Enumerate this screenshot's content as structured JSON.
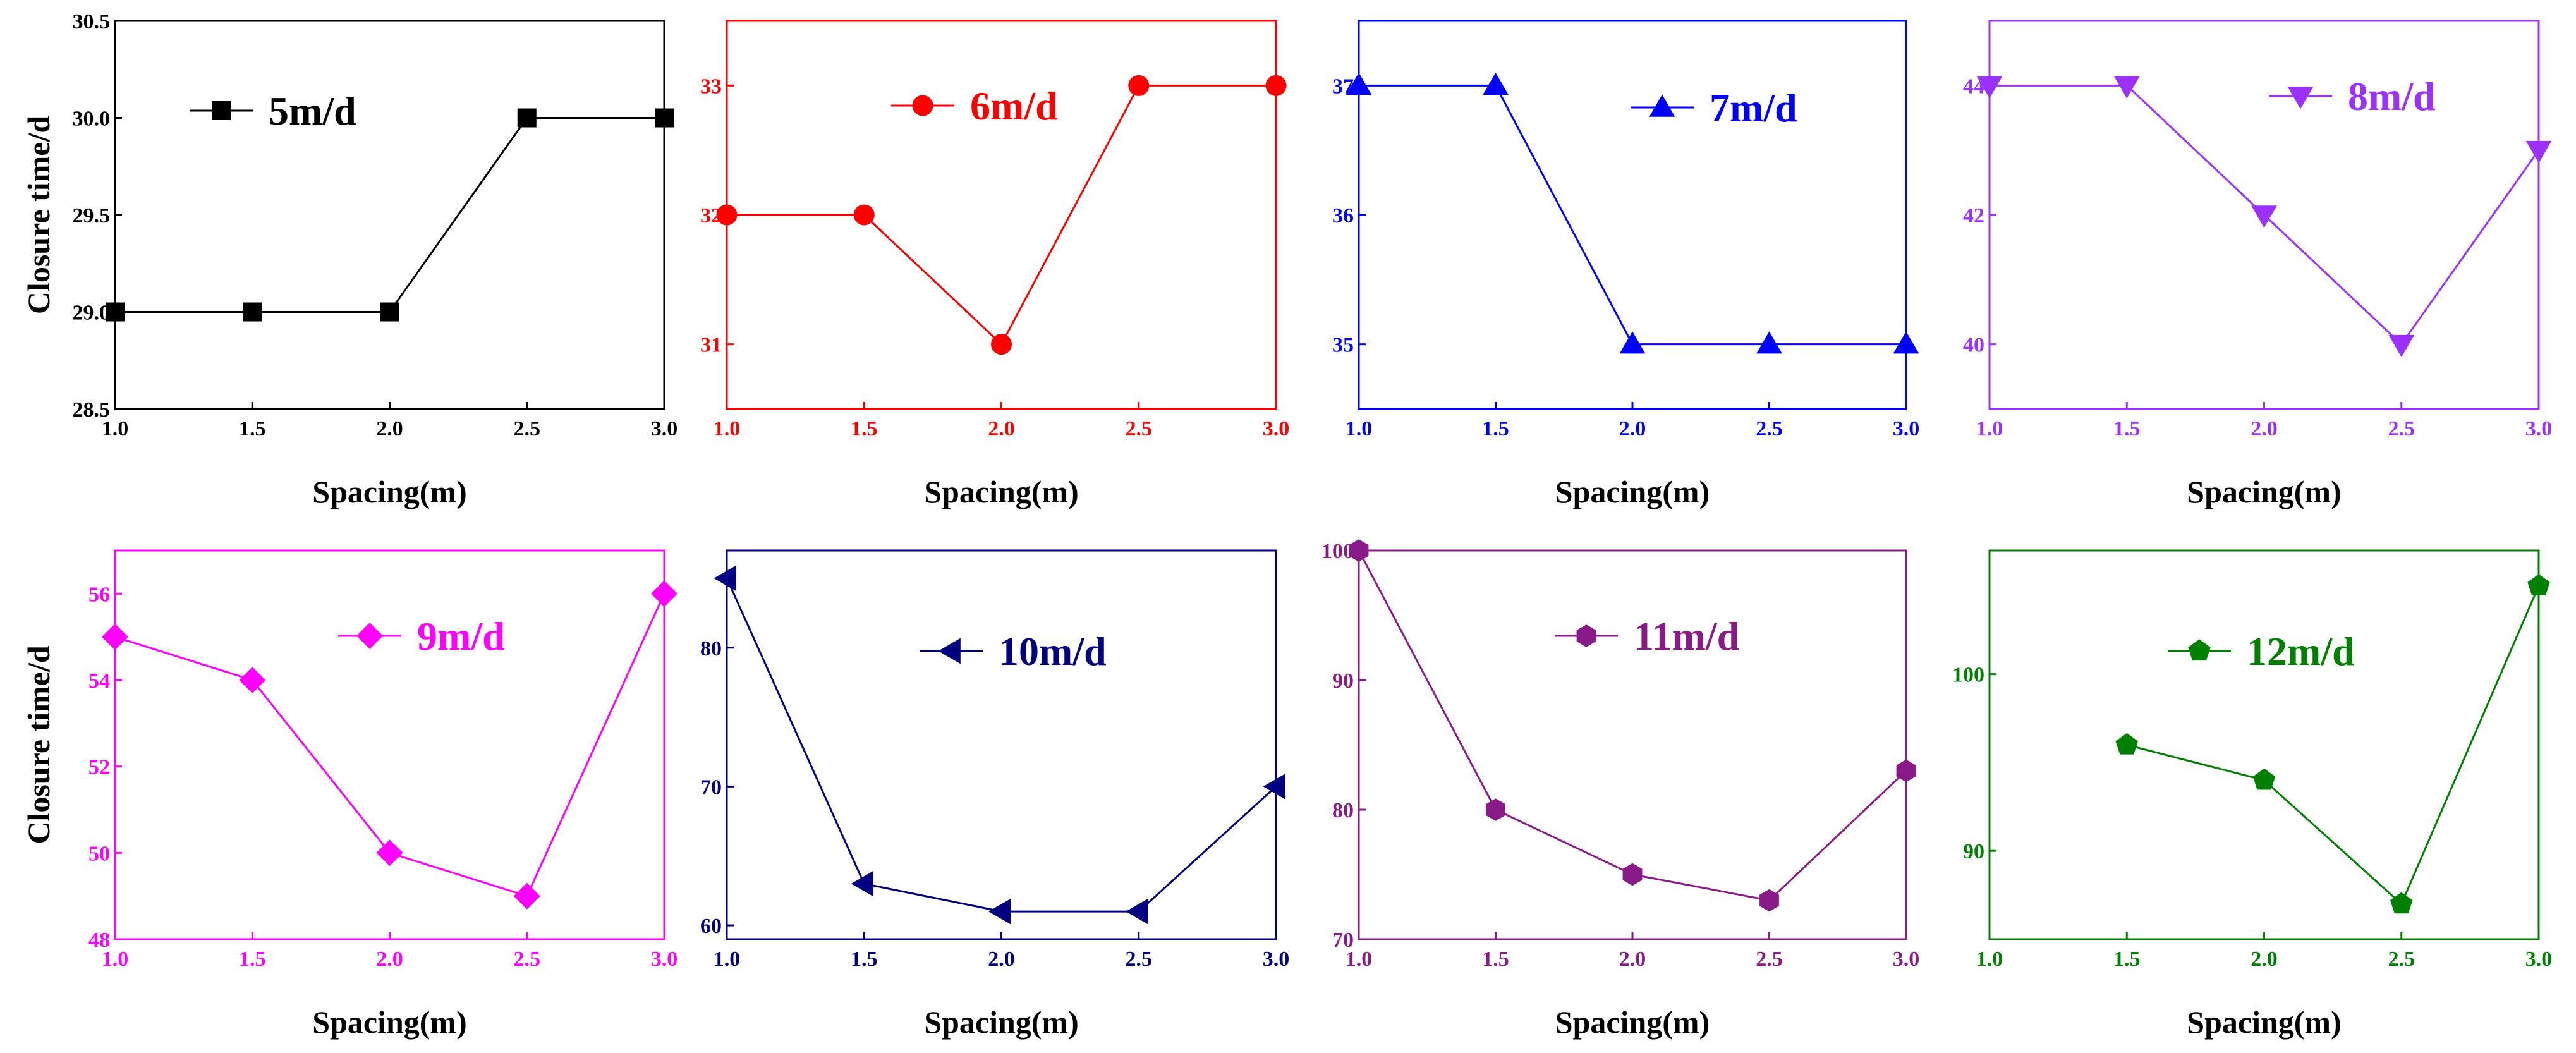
{
  "chart_data": [
    {
      "type": "line",
      "color": "#000000",
      "marker": "square",
      "xlabel": "Spacing(m)",
      "ylabel": "Closure time/d",
      "xlim": [
        1.0,
        3.0
      ],
      "ylim": [
        28.5,
        30.5
      ],
      "xticks": [
        1.0,
        1.5,
        2.0,
        2.5,
        3.0
      ],
      "xtick_labels": [
        "1.0",
        "1.5",
        "2.0",
        "2.5",
        "3.0"
      ],
      "yticks": [
        28.5,
        29.0,
        29.5,
        30.0,
        30.5
      ],
      "ytick_labels": [
        "28.5",
        "29.0",
        "29.5",
        "30.0",
        "30.5"
      ],
      "step": true,
      "legend_position": "top-center",
      "series": [
        {
          "name": "5m/d",
          "x": [
            1.0,
            1.5,
            2.0,
            2.5,
            3.0
          ],
          "y": [
            29,
            29,
            29,
            30,
            30
          ]
        }
      ]
    },
    {
      "type": "line",
      "color": "#ff0000",
      "marker": "circle",
      "xlabel": "Spacing(m)",
      "ylabel": "",
      "xlim": [
        1.0,
        3.0
      ],
      "ylim": [
        30.5,
        33.5
      ],
      "xticks": [
        1.0,
        1.5,
        2.0,
        2.5,
        3.0
      ],
      "xtick_labels": [
        "1.0",
        "1.5",
        "2.0",
        "2.5",
        "3.0"
      ],
      "yticks": [
        31,
        32,
        33
      ],
      "ytick_labels": [
        "31",
        "32",
        "33"
      ],
      "step": false,
      "legend_position": "top-center",
      "series": [
        {
          "name": "6m/d",
          "x": [
            1.0,
            1.5,
            2.0,
            2.5,
            3.0
          ],
          "y": [
            32,
            32,
            31,
            33,
            33
          ]
        }
      ]
    },
    {
      "type": "line",
      "color": "#0000ff",
      "marker": "triangle-up",
      "xlabel": "Spacing(m)",
      "ylabel": "",
      "xlim": [
        1.0,
        3.0
      ],
      "ylim": [
        34.5,
        37.5
      ],
      "xticks": [
        1.0,
        1.5,
        2.0,
        2.5,
        3.0
      ],
      "xtick_labels": [
        "1.0",
        "1.5",
        "2.0",
        "2.5",
        "3.0"
      ],
      "yticks": [
        35,
        36,
        37
      ],
      "ytick_labels": [
        "35",
        "36",
        "37"
      ],
      "step": false,
      "legend_position": "top-right",
      "series": [
        {
          "name": "7m/d",
          "x": [
            1.0,
            1.5,
            2.0,
            2.5,
            3.0
          ],
          "y": [
            37,
            37,
            35,
            35,
            35
          ]
        }
      ]
    },
    {
      "type": "line",
      "color": "#9b30ff",
      "marker": "triangle-down",
      "xlabel": "Spacing(m)",
      "ylabel": "",
      "xlim": [
        1.0,
        3.0
      ],
      "ylim": [
        39.0,
        45.0
      ],
      "xticks": [
        1.0,
        1.5,
        2.0,
        2.5,
        3.0
      ],
      "xtick_labels": [
        "1.0",
        "1.5",
        "2.0",
        "2.5",
        "3.0"
      ],
      "yticks": [
        40,
        42,
        44
      ],
      "ytick_labels": [
        "40",
        "42",
        "44"
      ],
      "step": false,
      "legend_position": "top-right",
      "series": [
        {
          "name": "8m/d",
          "x": [
            1.0,
            1.5,
            2.0,
            2.5,
            3.0
          ],
          "y": [
            44,
            44,
            42,
            40,
            43
          ]
        }
      ]
    },
    {
      "type": "line",
      "color": "#ff00ff",
      "marker": "diamond",
      "xlabel": "Spacing(m)",
      "ylabel": "Closure time/d",
      "xlim": [
        1.0,
        3.0
      ],
      "ylim": [
        48.0,
        57.0
      ],
      "xticks": [
        1.0,
        1.5,
        2.0,
        2.5,
        3.0
      ],
      "xtick_labels": [
        "1.0",
        "1.5",
        "2.0",
        "2.5",
        "3.0"
      ],
      "yticks": [
        48,
        50,
        52,
        54,
        56
      ],
      "ytick_labels": [
        "48",
        "50",
        "52",
        "54",
        "56"
      ],
      "step": false,
      "legend_position": "top-right",
      "series": [
        {
          "name": "9m/d",
          "x": [
            1.0,
            1.5,
            2.0,
            2.5,
            3.0
          ],
          "y": [
            55,
            54,
            50,
            49,
            56
          ]
        }
      ]
    },
    {
      "type": "line",
      "color": "#000080",
      "marker": "triangle-left",
      "xlabel": "Spacing(m)",
      "ylabel": "",
      "xlim": [
        1.0,
        3.0
      ],
      "ylim": [
        59.0,
        87.0
      ],
      "xticks": [
        1.0,
        1.5,
        2.0,
        2.5,
        3.0
      ],
      "xtick_labels": [
        "1.0",
        "1.5",
        "2.0",
        "2.5",
        "3.0"
      ],
      "yticks": [
        60,
        70,
        80
      ],
      "ytick_labels": [
        "60",
        "70",
        "80"
      ],
      "step": true,
      "legend_position": "top-right",
      "series": [
        {
          "name": "10m/d",
          "x": [
            1.0,
            1.5,
            2.0,
            2.5,
            3.0
          ],
          "y": [
            85,
            63,
            61,
            61,
            70
          ]
        }
      ]
    },
    {
      "type": "line",
      "color": "#8b1a89",
      "marker": "hexagon",
      "xlabel": "Spacing(m)",
      "ylabel": "",
      "xlim": [
        1.0,
        3.0
      ],
      "ylim": [
        70.0,
        100.0
      ],
      "xticks": [
        1.0,
        1.5,
        2.0,
        2.5,
        3.0
      ],
      "xtick_labels": [
        "1.0",
        "1.5",
        "2.0",
        "2.5",
        "3.0"
      ],
      "yticks": [
        70,
        80,
        90,
        100
      ],
      "ytick_labels": [
        "70",
        "80",
        "90",
        "100"
      ],
      "step": false,
      "legend_position": "top-right",
      "series": [
        {
          "name": "11m/d",
          "x": [
            1.0,
            1.5,
            2.0,
            2.5,
            3.0
          ],
          "y": [
            100,
            80,
            75,
            73,
            83
          ]
        }
      ]
    },
    {
      "type": "line",
      "color": "#008000",
      "marker": "pentagon",
      "xlabel": "Spacing(m)",
      "ylabel": "",
      "xlim": [
        1.0,
        3.0
      ],
      "ylim": [
        85.0,
        107.0
      ],
      "xticks": [
        1.0,
        1.5,
        2.0,
        2.5,
        3.0
      ],
      "xtick_labels": [
        "1.0",
        "1.5",
        "2.0",
        "2.5",
        "3.0"
      ],
      "yticks": [
        90,
        100
      ],
      "ytick_labels": [
        "90",
        "100"
      ],
      "step": false,
      "legend_position": "top-right",
      "series": [
        {
          "name": "12m/d",
          "x": [
            1.5,
            2.0,
            2.5,
            3.0
          ],
          "y": [
            96,
            94,
            87,
            105
          ]
        }
      ]
    }
  ]
}
